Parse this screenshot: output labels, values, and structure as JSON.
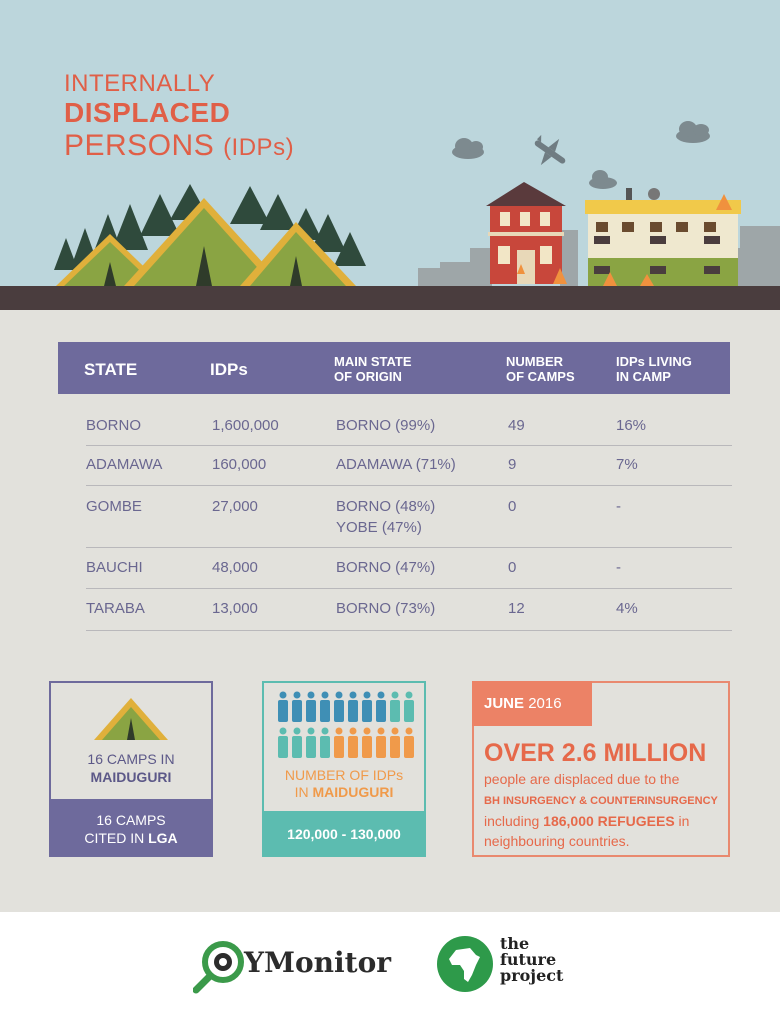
{
  "title": {
    "line1": "INTERNALLY",
    "line2": "DISPLACED",
    "line3": "PERSONS",
    "line3_suffix": "(IDPs)"
  },
  "table": {
    "headers": [
      "STATE",
      "IDPs",
      "MAIN STATE OF ORIGIN",
      "NUMBER OF CAMPS",
      "IDPs LIVING IN CAMP"
    ],
    "header_lines": {
      "origin": [
        "MAIN STATE",
        "OF ORIGIN"
      ],
      "camps": [
        "NUMBER",
        "OF CAMPS"
      ],
      "living": [
        "IDPs LIVING",
        "IN CAMP"
      ]
    },
    "rows": [
      {
        "state": "BORNO",
        "idps": "1,600,000",
        "origin": [
          "BORNO (99%)"
        ],
        "camps": "49",
        "living": "16%"
      },
      {
        "state": "ADAMAWA",
        "idps": "160,000",
        "origin": [
          "ADAMAWA (71%)"
        ],
        "camps": "9",
        "living": "7%"
      },
      {
        "state": "GOMBE",
        "idps": "27,000",
        "origin": [
          "BORNO (48%)",
          "YOBE (47%)"
        ],
        "camps": "0",
        "living": "-"
      },
      {
        "state": "BAUCHI",
        "idps": "48,000",
        "origin": [
          "BORNO (47%)"
        ],
        "camps": "0",
        "living": "-"
      },
      {
        "state": "TARABA",
        "idps": "13,000",
        "origin": [
          "BORNO (73%)"
        ],
        "camps": "12",
        "living": "4%"
      }
    ]
  },
  "camps_box": {
    "line1": "16 CAMPS IN",
    "line2": "MAIDUGURI",
    "footer_line1": "16 CAMPS",
    "footer_line2_prefix": "CITED IN ",
    "footer_line2_bold": "LGA"
  },
  "idps_box": {
    "line1": "NUMBER OF IDPs",
    "line2_prefix": "IN ",
    "line2_bold": "MAIDUGURI",
    "value": "120,000 - 130,000"
  },
  "june_box": {
    "month": "JUNE",
    "year": "2016",
    "headline": "OVER 2.6 MILLION",
    "text1": "people are displaced due to the",
    "text2": "BH INSURGENCY & COUNTERINSURGENCY",
    "text3_prefix": "including ",
    "text3_bold": "186,000 REFUGEES",
    "text3_suffix": " in",
    "text4": "neighbouring countries."
  },
  "footer": {
    "ymonitor": "YMonitor",
    "tfp_lines": [
      "the",
      "future",
      "project"
    ]
  },
  "colors": {
    "accent_red": "#e05f47",
    "purple": "#6e6a9c",
    "teal": "#5cbcb0",
    "orange": "#f09a4a",
    "blue_person": "#3f8fb5"
  }
}
